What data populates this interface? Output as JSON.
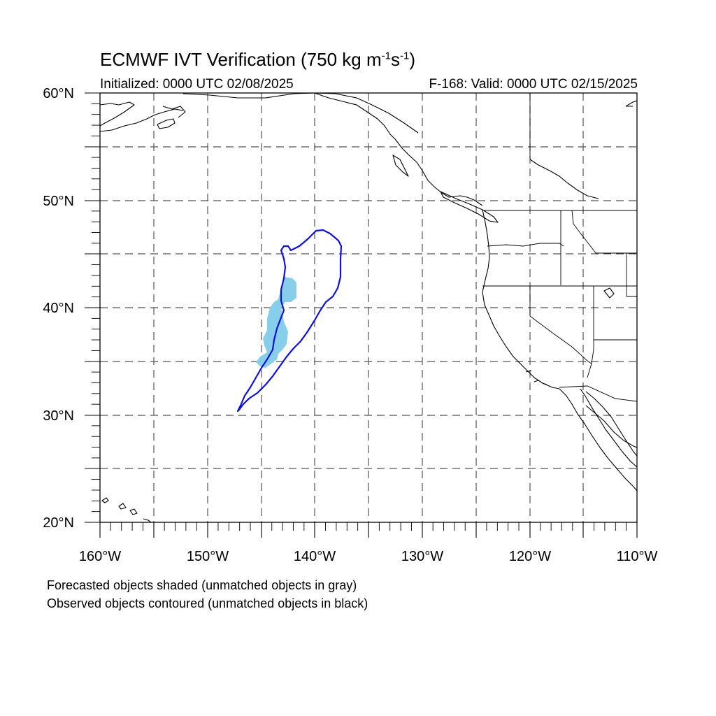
{
  "map": {
    "title_main": "ECMWF IVT Verification (750 kg m",
    "title_exp1": "-1",
    "title_mid": "s",
    "title_exp2": "-1",
    "title_end": ")",
    "initialized": "Initialized: 0000 UTC 02/08/2025",
    "valid": "F-168: Valid: 0000 UTC 02/15/2025",
    "lat_labels": [
      "60°N",
      "50°N",
      "40°N",
      "30°N",
      "20°N"
    ],
    "lon_labels": [
      "160°W",
      "150°W",
      "140°W",
      "130°W",
      "120°W",
      "110°W"
    ],
    "extent": {
      "lon": [
        -160,
        -110
      ],
      "lat": [
        20,
        60
      ]
    },
    "legend": [
      "Forecasted objects shaded (unmatched objects in gray)",
      "Observed objects contoured (unmatched objects in black)"
    ],
    "colors": {
      "forecast_fill": "#87ceeb",
      "observed_contour": "#1010dd",
      "coastline": "#000000",
      "grid": "#555555"
    }
  }
}
